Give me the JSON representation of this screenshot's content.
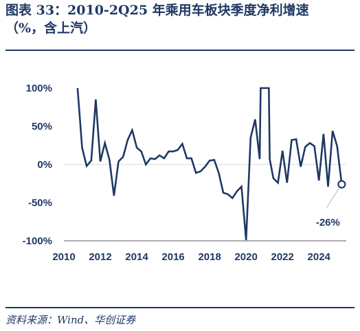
{
  "header": {
    "title_line1": "图表 33：2010-2Q25 年乘用车板块季度净利增速",
    "title_line2": "（%，含上汽）"
  },
  "footer": {
    "source": "资料来源：Wind、华创证券"
  },
  "colors": {
    "line": "#1f3864",
    "text": "#1f3864",
    "axis": "#555555"
  },
  "chart_data": {
    "type": "line",
    "title": "2010-2Q25 年乘用车板块季度净利增速",
    "xlabel": "",
    "ylabel": "",
    "ylim": [
      -100,
      100
    ],
    "xlim": [
      2010,
      2025.5
    ],
    "y_ticks": [
      100,
      50,
      0,
      -50,
      -100
    ],
    "y_tick_labels": [
      "100%",
      "50%",
      "0%",
      "-50%",
      "-100%"
    ],
    "x_ticks": [
      2010,
      2012,
      2014,
      2016,
      2018,
      2020,
      2022,
      2024
    ],
    "x_tick_labels": [
      "2010",
      "2012",
      "2014",
      "2016",
      "2018",
      "2020",
      "2022",
      "2024"
    ],
    "grid": false,
    "series": [
      {
        "values": [
          [
            2010.75,
            120
          ],
          [
            2011.0,
            22
          ],
          [
            2011.25,
            -2
          ],
          [
            2011.5,
            5
          ],
          [
            2011.75,
            85
          ],
          [
            2012.0,
            4
          ],
          [
            2012.25,
            28
          ],
          [
            2012.5,
            6
          ],
          [
            2012.75,
            -41
          ],
          [
            2013.0,
            4
          ],
          [
            2013.25,
            10
          ],
          [
            2013.5,
            32
          ],
          [
            2013.75,
            45
          ],
          [
            2014.0,
            22
          ],
          [
            2014.25,
            17
          ],
          [
            2014.5,
            0
          ],
          [
            2014.75,
            8
          ],
          [
            2015.0,
            7
          ],
          [
            2015.25,
            12
          ],
          [
            2015.5,
            8
          ],
          [
            2015.75,
            17
          ],
          [
            2016.0,
            17
          ],
          [
            2016.25,
            19
          ],
          [
            2016.5,
            27
          ],
          [
            2016.75,
            8
          ],
          [
            2017.0,
            8
          ],
          [
            2017.25,
            -11
          ],
          [
            2017.5,
            -9
          ],
          [
            2017.75,
            -3
          ],
          [
            2018.0,
            5
          ],
          [
            2018.25,
            6
          ],
          [
            2018.5,
            -11
          ],
          [
            2018.75,
            -37
          ],
          [
            2019.0,
            -39
          ],
          [
            2019.25,
            -44
          ],
          [
            2019.5,
            -35
          ],
          [
            2019.75,
            -29
          ],
          [
            2020.0,
            -99
          ],
          [
            2020.25,
            35
          ],
          [
            2020.5,
            59
          ],
          [
            2020.75,
            7
          ],
          [
            2020.8,
            120
          ],
          [
            2021.25,
            120
          ],
          [
            2021.3,
            7
          ],
          [
            2021.5,
            -18
          ],
          [
            2021.75,
            -24
          ],
          [
            2022.0,
            18
          ],
          [
            2022.25,
            -24
          ],
          [
            2022.5,
            32
          ],
          [
            2022.75,
            33
          ],
          [
            2023.0,
            -3
          ],
          [
            2023.25,
            23
          ],
          [
            2023.5,
            28
          ],
          [
            2023.75,
            24
          ],
          [
            2024.0,
            -21
          ],
          [
            2024.25,
            40
          ],
          [
            2024.5,
            -29
          ],
          [
            2024.75,
            44
          ],
          [
            2025.0,
            24
          ],
          [
            2025.25,
            -26
          ]
        ]
      }
    ],
    "annotations": [
      {
        "x": 2025.25,
        "y": -26,
        "label": "-26%"
      }
    ]
  }
}
